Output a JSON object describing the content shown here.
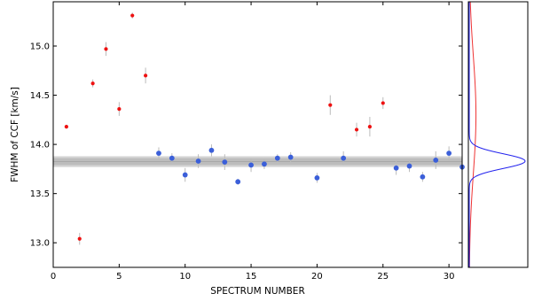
{
  "chart_data": [
    {
      "type": "scatter",
      "xlabel": "SPECTRUM NUMBER",
      "ylabel": "FWHM of CCF [km/s]",
      "xlim": [
        0,
        31
      ],
      "ylim": [
        12.75,
        15.45
      ],
      "xticks": [
        0,
        5,
        10,
        15,
        20,
        25,
        30
      ],
      "yticks": [
        13.0,
        13.5,
        14.0,
        14.5,
        15.0
      ],
      "xtick_labels": [
        "0",
        "5",
        "10",
        "15",
        "20",
        "25",
        "30"
      ],
      "ytick_labels": [
        "13.0",
        "13.5",
        "14.0",
        "14.5",
        "15.0"
      ],
      "grid": false,
      "legend": "none",
      "band": {
        "center": 13.825,
        "inner": [
          13.79,
          13.86
        ],
        "outer": [
          13.77,
          13.88
        ]
      },
      "series": [
        {
          "color": "#ee1111",
          "marker": "small-dot",
          "points": [
            {
              "x": 1,
              "y": 14.18,
              "err": 0.02
            },
            {
              "x": 2,
              "y": 13.04,
              "err": 0.06
            },
            {
              "x": 3,
              "y": 14.62,
              "err": 0.04
            },
            {
              "x": 4,
              "y": 14.97,
              "err": 0.07
            },
            {
              "x": 5,
              "y": 14.36,
              "err": 0.07
            },
            {
              "x": 6,
              "y": 15.31,
              "err": 0.03
            },
            {
              "x": 7,
              "y": 14.7,
              "err": 0.08
            },
            {
              "x": 21,
              "y": 14.4,
              "err": 0.1
            },
            {
              "x": 23,
              "y": 14.15,
              "err": 0.07
            },
            {
              "x": 24,
              "y": 14.18,
              "err": 0.1
            },
            {
              "x": 25,
              "y": 14.42,
              "err": 0.06
            }
          ]
        },
        {
          "color": "#3b5fd9",
          "marker": "dot",
          "points": [
            {
              "x": 8,
              "y": 13.91,
              "err": 0.06
            },
            {
              "x": 9,
              "y": 13.86,
              "err": 0.05
            },
            {
              "x": 10,
              "y": 13.69,
              "err": 0.07
            },
            {
              "x": 11,
              "y": 13.83,
              "err": 0.07
            },
            {
              "x": 12,
              "y": 13.94,
              "err": 0.06
            },
            {
              "x": 13,
              "y": 13.82,
              "err": 0.08
            },
            {
              "x": 14,
              "y": 13.62,
              "err": 0.03
            },
            {
              "x": 15,
              "y": 13.79,
              "err": 0.07
            },
            {
              "x": 16,
              "y": 13.8,
              "err": 0.05
            },
            {
              "x": 17,
              "y": 13.86,
              "err": 0.04
            },
            {
              "x": 18,
              "y": 13.87,
              "err": 0.05
            },
            {
              "x": 20,
              "y": 13.66,
              "err": 0.05
            },
            {
              "x": 22,
              "y": 13.86,
              "err": 0.07
            },
            {
              "x": 26,
              "y": 13.76,
              "err": 0.07
            },
            {
              "x": 27,
              "y": 13.78,
              "err": 0.06
            },
            {
              "x": 28,
              "y": 13.67,
              "err": 0.05
            },
            {
              "x": 29,
              "y": 13.84,
              "err": 0.09
            },
            {
              "x": 30,
              "y": 13.91,
              "err": 0.07
            },
            {
              "x": 31,
              "y": 13.77,
              "err": 0.06
            }
          ]
        }
      ]
    },
    {
      "type": "line",
      "orientation": "horizontal-density",
      "shares_y_axis": true,
      "ticks": "none",
      "series": [
        {
          "color": "#ee3333",
          "mean": 14.3,
          "sd": 0.6,
          "peak": 0.12
        },
        {
          "color": "#2222ee",
          "mean": 13.83,
          "sd": 0.075,
          "peak": 1.0
        }
      ]
    }
  ]
}
